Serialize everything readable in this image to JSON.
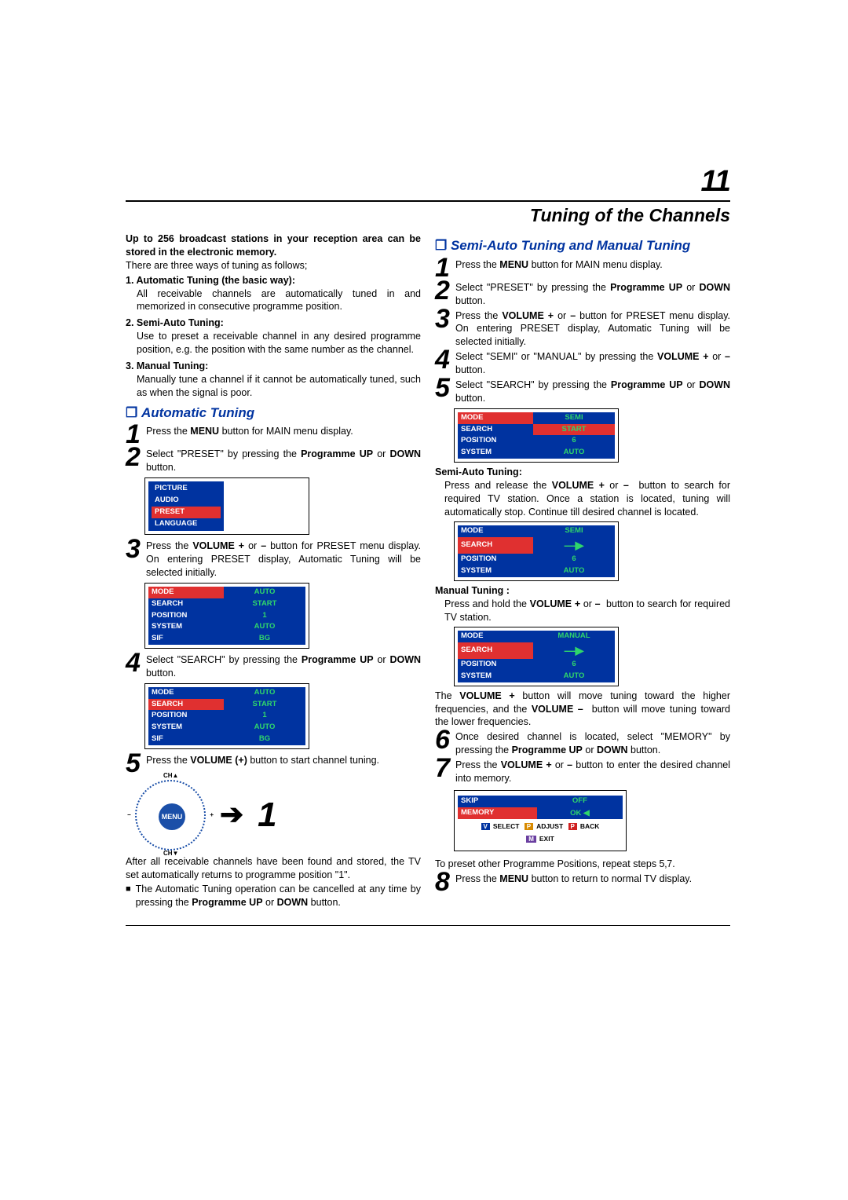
{
  "page_number": "11",
  "title": "Tuning of the Channels",
  "colors": {
    "heading_blue": "#0033a0",
    "menu_bg": "#0033a0",
    "menu_hl": "#e03030",
    "menu_val": "#2fd66b",
    "text": "#000000",
    "page_bg": "#ffffff"
  },
  "intro": {
    "bold": "Up to 256 broadcast stations in your reception area can be stored in the electronic memory.",
    "line": "There are three ways of tuning as follows;",
    "ways": [
      {
        "num": "1.",
        "title": "Automatic Tuning (the basic way):",
        "body": "All receivable channels are automatically tuned in and memorized in consecutive programme position."
      },
      {
        "num": "2.",
        "title": "Semi-Auto Tuning:",
        "body": "Use to preset a receivable channel in any desired programme position, e.g. the position with the same number as the channel."
      },
      {
        "num": "3.",
        "title": "Manual Tuning:",
        "body": "Manually tune a channel if it cannot be automatically tuned, such as when the signal is poor."
      }
    ]
  },
  "automatic": {
    "heading": "Automatic Tuning",
    "steps": [
      {
        "n": "1",
        "html": "Press the <b>MENU</b> button for MAIN menu display."
      },
      {
        "n": "2",
        "html": "Select \"PRESET\" by pressing the <b>Programme UP</b> or <b>DOWN</b> button."
      },
      {
        "n": "3",
        "html": "Press the <b>VOLUME +</b> or <b>–</b> button for PRESET menu display. On entering PRESET display, Automatic Tuning will be selected initially."
      },
      {
        "n": "4",
        "html": "Select \"SEARCH\" by pressing the <b>Programme UP</b> or <b>DOWN</b> button."
      },
      {
        "n": "5",
        "html": "Press the <b>VOLUME (+)</b> button to start channel tuning."
      }
    ],
    "main_menu": {
      "items": [
        "PICTURE",
        "AUDIO",
        "PRESET",
        "LANGUAGE"
      ],
      "hl_index": 2
    },
    "preset_menu1": {
      "rows": [
        [
          "MODE",
          "AUTO"
        ],
        [
          "SEARCH",
          "START"
        ],
        [
          "POSITION",
          "1"
        ],
        [
          "SYSTEM",
          "AUTO"
        ],
        [
          "SIF",
          "BG"
        ]
      ],
      "hl_row": 0
    },
    "preset_menu2": {
      "rows": [
        [
          "MODE",
          "AUTO"
        ],
        [
          "SEARCH",
          "START"
        ],
        [
          "POSITION",
          "1"
        ],
        [
          "SYSTEM",
          "AUTO"
        ],
        [
          "SIF",
          "BG"
        ]
      ],
      "hl_row": 1
    },
    "remote": {
      "center": "MENU",
      "up": "CH▲",
      "down": "CH▼",
      "left": "−",
      "right": "+",
      "big": "1"
    },
    "after": "After all receivable channels have been found and stored, the TV set automatically returns to programme position \"1\".",
    "bullet": "The Automatic Tuning operation can be cancelled at any time by pressing the <b>Programme UP</b> or <b>DOWN</b> button."
  },
  "semi": {
    "heading": "Semi-Auto Tuning and Manual Tuning",
    "steps_top": [
      {
        "n": "1",
        "html": "Press the <b>MENU</b> button for MAIN menu display."
      },
      {
        "n": "2",
        "html": "Select \"PRESET\" by pressing the <b>Programme UP</b> or <b>DOWN</b> button."
      },
      {
        "n": "3",
        "html": "Press the <b>VOLUME +</b> or <b>–</b> button for PRESET menu display. On entering PRESET display, Automatic Tuning will be selected initially."
      },
      {
        "n": "4",
        "html": "Select \"SEMI\" or \"MANUAL\" by pressing the <b>VOLUME +</b> or <b>–</b> button."
      },
      {
        "n": "5",
        "html": "Select \"SEARCH\" by pressing the <b>Programme UP</b> or <b>DOWN</b> button."
      }
    ],
    "menu_semi1": {
      "rows": [
        [
          "MODE",
          "SEMI"
        ],
        [
          "SEARCH",
          "START"
        ],
        [
          "POSITION",
          "6"
        ],
        [
          "SYSTEM",
          "AUTO"
        ]
      ],
      "hl_row": 0,
      "hl_val_row": 1
    },
    "semi_auto": {
      "title": "Semi-Auto Tuning:",
      "body": "Press and release the <b>VOLUME +</b> or <b>–</b>  button to search for required TV station. Once a station is located, tuning will automatically stop. Continue till desired channel is located."
    },
    "menu_semi2": {
      "rows": [
        [
          "MODE",
          "SEMI"
        ],
        [
          "SEARCH",
          ""
        ],
        [
          "POSITION",
          "6"
        ],
        [
          "SYSTEM",
          "AUTO"
        ]
      ],
      "hl_row": 1,
      "arrow_row": 1
    },
    "manual": {
      "title": "Manual Tuning :",
      "body": "Press and hold the <b>VOLUME +</b> or <b>–</b>  button to search for required TV station."
    },
    "menu_manual": {
      "rows": [
        [
          "MODE",
          "MANUAL"
        ],
        [
          "SEARCH",
          ""
        ],
        [
          "POSITION",
          "6"
        ],
        [
          "SYSTEM",
          "AUTO"
        ]
      ],
      "hl_row": 1,
      "arrow_row": 1
    },
    "vol_para": "The <b>VOLUME +</b> button will move tuning toward the higher frequencies, and the <b>VOLUME –</b>  button will move tuning toward the lower frequencies.",
    "steps_bottom": [
      {
        "n": "6",
        "html": "Once desired channel is located, select \"MEMORY\" by pressing the <b>Programme UP</b> or <b>DOWN</b> button."
      },
      {
        "n": "7",
        "html": "Press the <b>VOLUME +</b> or <b>–</b> button to enter the desired channel into memory."
      }
    ],
    "footer_menu": {
      "row1": [
        [
          "SKIP",
          "OFF"
        ],
        [
          "MEMORY",
          "OK"
        ]
      ],
      "hl_row": 1,
      "legend": {
        "select": "SELECT",
        "adjust": "ADJUST",
        "back": "BACK",
        "exit": "EXIT",
        "m": "M",
        "v": "V",
        "p": "P"
      },
      "cursor": "◀"
    },
    "repeat_note": "To preset other Programme Positions, repeat steps 5‚7.",
    "step8": {
      "n": "8",
      "html": "Press the <b>MENU</b> button to return to normal TV display."
    }
  }
}
